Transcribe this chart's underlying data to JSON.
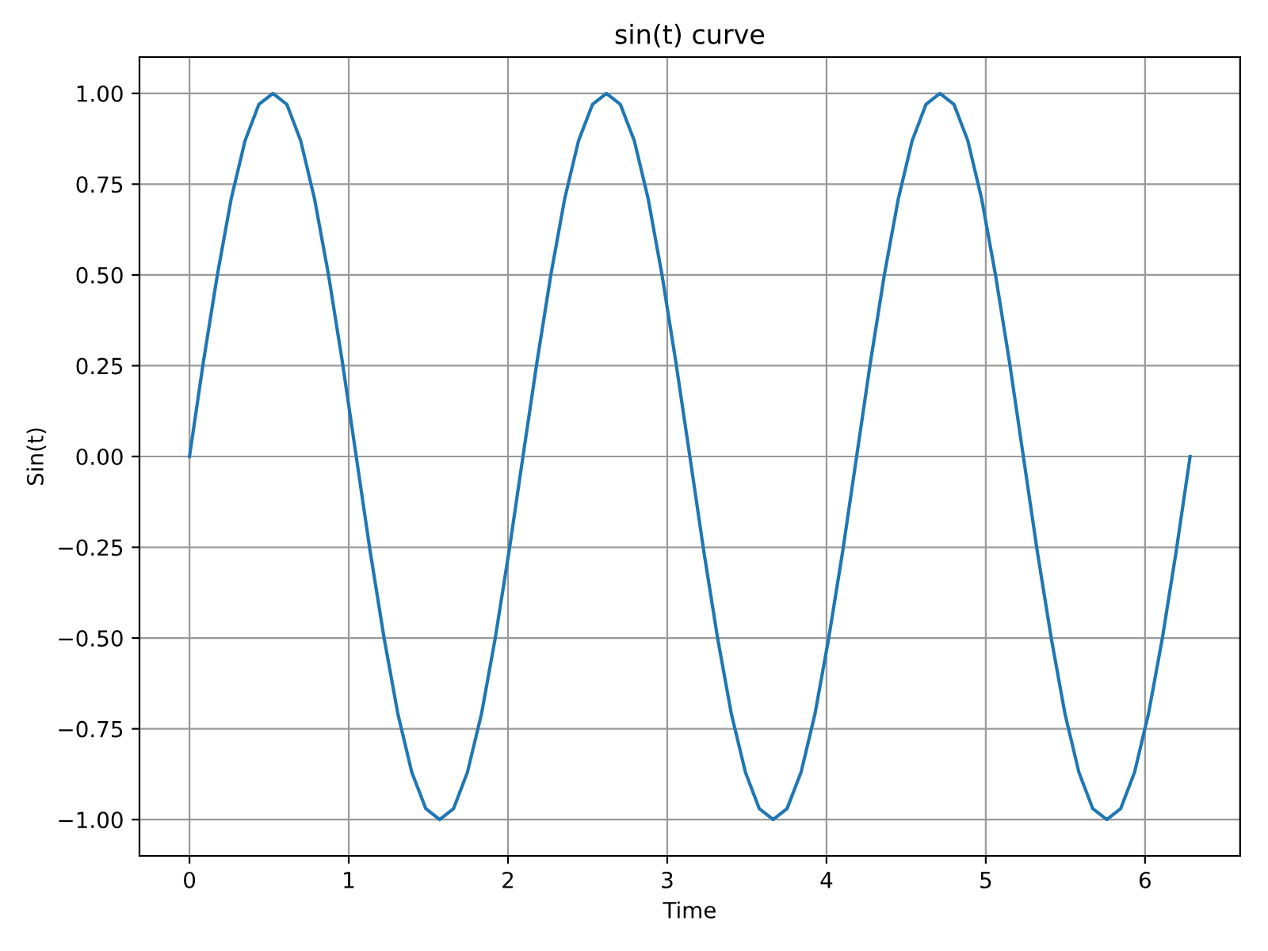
{
  "chart_data": {
    "type": "line",
    "title": "sin(t) curve",
    "xlabel": "Time",
    "ylabel": "Sin(t)",
    "x": [
      0,
      0.087,
      0.175,
      0.262,
      0.349,
      0.436,
      0.524,
      0.611,
      0.698,
      0.785,
      0.873,
      0.96,
      1.047,
      1.134,
      1.222,
      1.309,
      1.396,
      1.484,
      1.571,
      1.658,
      1.745,
      1.833,
      1.92,
      2.007,
      2.094,
      2.182,
      2.269,
      2.356,
      2.443,
      2.531,
      2.618,
      2.705,
      2.793,
      2.88,
      2.967,
      3.054,
      3.142,
      3.229,
      3.316,
      3.403,
      3.491,
      3.578,
      3.665,
      3.752,
      3.84,
      3.927,
      4.014,
      4.102,
      4.189,
      4.276,
      4.363,
      4.451,
      4.538,
      4.625,
      4.712,
      4.8,
      4.887,
      4.974,
      5.061,
      5.149,
      5.236,
      5.323,
      5.411,
      5.498,
      5.585,
      5.672,
      5.76,
      5.847,
      5.934,
      6.021,
      6.109,
      6.196,
      6.283
    ],
    "series": [
      {
        "color": "#1f77b4",
        "values": [
          0,
          0.26,
          0.5,
          0.71,
          0.87,
          0.97,
          1,
          0.97,
          0.87,
          0.71,
          0.5,
          0.26,
          0,
          -0.26,
          -0.5,
          -0.71,
          -0.87,
          -0.97,
          -1,
          -0.97,
          -0.87,
          -0.71,
          -0.5,
          -0.26,
          0,
          0.26,
          0.5,
          0.71,
          0.87,
          0.97,
          1,
          0.97,
          0.87,
          0.71,
          0.5,
          0.26,
          0,
          -0.26,
          -0.5,
          -0.71,
          -0.87,
          -0.97,
          -1,
          -0.97,
          -0.87,
          -0.71,
          -0.5,
          -0.26,
          0,
          0.26,
          0.5,
          0.71,
          0.87,
          0.97,
          1,
          0.97,
          0.87,
          0.71,
          0.5,
          0.26,
          0,
          -0.26,
          -0.5,
          -0.71,
          -0.87,
          -0.97,
          -1,
          -0.97,
          -0.87,
          -0.71,
          -0.5,
          -0.26,
          0
        ]
      }
    ],
    "xlim": [
      -0.314,
      6.597
    ],
    "ylim": [
      -1.1,
      1.1
    ],
    "xticks": [
      0,
      1,
      2,
      3,
      4,
      5,
      6
    ],
    "yticks": [
      {
        "value": -1,
        "label": "−1.00"
      },
      {
        "value": -0.75,
        "label": "−0.75"
      },
      {
        "value": -0.5,
        "label": "−0.50"
      },
      {
        "value": -0.25,
        "label": "−0.25"
      },
      {
        "value": 0,
        "label": "0.00"
      },
      {
        "value": 0.25,
        "label": "0.25"
      },
      {
        "value": 0.5,
        "label": "0.50"
      },
      {
        "value": 0.75,
        "label": "0.75"
      },
      {
        "value": 1,
        "label": "1.00"
      }
    ],
    "grid": true
  }
}
